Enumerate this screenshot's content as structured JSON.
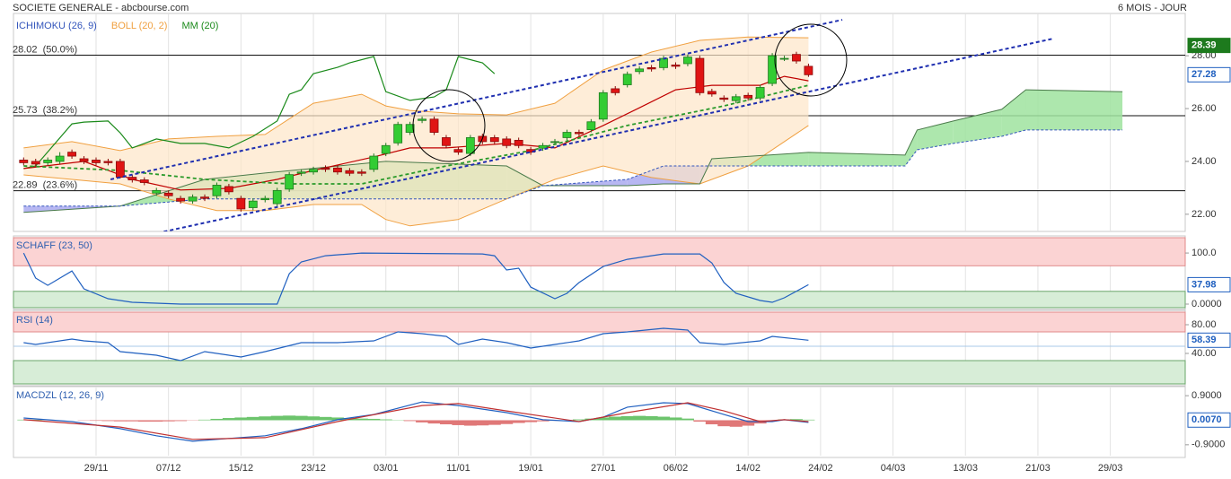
{
  "header": {
    "title": "SOCIETE GENERALE - abcbourse.com",
    "period": "6 MOIS - JOUR"
  },
  "chart_data": [
    {
      "type": "candlestick",
      "x": [
        0,
        1,
        2,
        3,
        4,
        5,
        6,
        7,
        8,
        9,
        10,
        11,
        12,
        13,
        14,
        15,
        16,
        17,
        18,
        19,
        20,
        21,
        22,
        23,
        24,
        25,
        26,
        27,
        28,
        29,
        30,
        31,
        32,
        33,
        34,
        35,
        36,
        37,
        38,
        39,
        40,
        41,
        42,
        43,
        44,
        45,
        46,
        47,
        48,
        49,
        50,
        51,
        52,
        53,
        54,
        55,
        56,
        57,
        58,
        59,
        60,
        61,
        62,
        63,
        64,
        65
      ],
      "open": [
        24.05,
        24.0,
        23.95,
        24.0,
        24.35,
        24.1,
        24.05,
        24.0,
        24.0,
        23.4,
        23.3,
        22.8,
        22.8,
        22.6,
        22.5,
        22.65,
        22.7,
        23.05,
        22.6,
        22.25,
        22.55,
        22.4,
        22.95,
        23.55,
        23.6,
        23.75,
        23.75,
        23.65,
        23.6,
        23.7,
        24.3,
        24.7,
        25.1,
        25.55,
        25.6,
        24.9,
        24.45,
        24.3,
        24.95,
        24.9,
        24.85,
        24.8,
        24.45,
        24.5,
        24.75,
        24.9,
        25.1,
        25.2,
        25.6,
        26.75,
        26.9,
        27.4,
        27.55,
        27.55,
        27.65,
        27.7,
        27.9,
        26.65,
        26.4,
        26.3,
        26.5,
        26.4,
        26.95,
        27.9,
        28.05,
        27.6
      ],
      "high": [
        24.15,
        24.1,
        24.15,
        24.35,
        24.45,
        24.2,
        24.15,
        24.1,
        24.1,
        23.5,
        23.4,
        23.0,
        22.9,
        22.7,
        22.75,
        22.75,
        23.2,
        23.15,
        22.7,
        22.6,
        22.7,
        23.0,
        23.6,
        23.7,
        23.8,
        23.85,
        23.85,
        23.75,
        23.7,
        24.3,
        24.7,
        25.5,
        25.5,
        25.7,
        25.7,
        25.0,
        24.55,
        25.0,
        25.05,
        25.0,
        24.95,
        24.9,
        24.55,
        24.7,
        24.85,
        25.2,
        25.2,
        25.6,
        26.7,
        26.85,
        27.4,
        27.6,
        27.65,
        28.0,
        27.75,
        28.05,
        28.0,
        26.75,
        26.5,
        26.55,
        26.6,
        26.9,
        28.1,
        28.0,
        28.15,
        27.7
      ],
      "low": [
        23.85,
        23.8,
        23.85,
        23.9,
        24.1,
        23.9,
        23.85,
        23.85,
        23.35,
        23.2,
        23.1,
        22.7,
        22.6,
        22.4,
        22.4,
        22.5,
        22.6,
        22.75,
        22.1,
        22.15,
        22.45,
        22.3,
        22.85,
        23.45,
        23.5,
        23.6,
        23.5,
        23.45,
        23.45,
        23.6,
        24.2,
        24.6,
        25.0,
        25.45,
        25.0,
        24.5,
        24.25,
        24.2,
        24.65,
        24.65,
        24.5,
        24.5,
        24.25,
        24.4,
        24.65,
        24.8,
        24.95,
        25.1,
        25.5,
        26.5,
        26.8,
        27.3,
        27.4,
        27.45,
        27.5,
        27.6,
        26.5,
        26.45,
        26.25,
        26.2,
        26.3,
        26.3,
        26.85,
        27.8,
        27.7,
        27.2
      ],
      "close": [
        23.95,
        23.9,
        24.05,
        24.2,
        24.2,
        24.0,
        23.95,
        23.95,
        23.4,
        23.3,
        23.2,
        22.9,
        22.7,
        22.5,
        22.65,
        22.6,
        23.1,
        22.85,
        22.2,
        22.5,
        22.6,
        22.9,
        23.5,
        23.6,
        23.7,
        23.7,
        23.6,
        23.55,
        23.55,
        24.2,
        24.6,
        25.4,
        25.4,
        25.6,
        25.1,
        24.6,
        24.35,
        24.9,
        24.75,
        24.75,
        24.6,
        24.6,
        24.35,
        24.6,
        24.75,
        25.1,
        25.05,
        25.5,
        26.6,
        26.6,
        27.3,
        27.5,
        27.5,
        27.9,
        27.6,
        27.95,
        26.6,
        26.55,
        26.35,
        26.45,
        26.4,
        26.8,
        28.0,
        27.9,
        27.8,
        27.28
      ],
      "colors": {
        "up": "#33cc33",
        "down": "#e01414",
        "up_edge": "#1f7a1f",
        "down_edge": "#8a0a0a"
      },
      "ylim": [
        21.35,
        29.6
      ],
      "yticks": [
        {
          "value": 28,
          "label": "28.00"
        },
        {
          "value": 26,
          "label": "26.00"
        },
        {
          "value": 24,
          "label": "24.00"
        },
        {
          "value": 22,
          "label": "22.00"
        }
      ],
      "cloud": {
        "name": "ICHIMOKU (26, 9)",
        "color": "#3355bb",
        "a_color": "#4a7a4a",
        "colors": [
          "#9fe39f",
          "#aaaaf0"
        ],
        "x": [
          0,
          8,
          15,
          20,
          30,
          40,
          43,
          50,
          53,
          56,
          57,
          65,
          73,
          74,
          77,
          81,
          83,
          91
        ],
        "span_a": [
          22.07,
          22.31,
          23.32,
          23.56,
          24.0,
          23.83,
          23.08,
          23.08,
          23.15,
          23.15,
          24.1,
          24.34,
          24.24,
          25.19,
          25.53,
          25.97,
          26.71,
          26.64
        ],
        "span_b": [
          22.31,
          22.31,
          22.58,
          22.58,
          22.58,
          22.58,
          23.08,
          23.32,
          23.83,
          23.83,
          23.83,
          23.83,
          23.83,
          24.44,
          24.68,
          24.95,
          25.19,
          25.19
        ]
      },
      "bands": {
        "name": "BOLL (20, 2)",
        "color": "#f0a040",
        "fill": "#fde6c8",
        "x": [
          0,
          4,
          8,
          12,
          16,
          20,
          24,
          28,
          30,
          32,
          36,
          40,
          44,
          48,
          52,
          56,
          60,
          65
        ],
        "upper": [
          24.51,
          24.75,
          24.41,
          24.85,
          24.95,
          25.02,
          26.2,
          26.54,
          26.1,
          25.93,
          25.8,
          25.76,
          26.2,
          27.46,
          28.14,
          28.58,
          28.71,
          28.68
        ],
        "lower": [
          23.49,
          23.32,
          23.15,
          22.58,
          22.14,
          22.14,
          22.37,
          22.37,
          21.8,
          21.56,
          21.8,
          22.58,
          23.32,
          23.83,
          23.39,
          23.15,
          23.83,
          25.36
        ]
      },
      "series": [
        {
          "name": "MM (20)",
          "color": "#1a8a1a",
          "x": [
            0,
            1,
            4,
            5,
            7,
            8,
            9,
            11,
            13,
            15,
            17,
            19,
            21,
            22,
            23,
            24,
            26,
            27,
            29,
            30,
            32,
            34,
            35,
            36,
            38,
            39
          ],
          "values": [
            23.73,
            23.83,
            25.42,
            25.49,
            25.53,
            25.08,
            24.51,
            24.85,
            24.68,
            24.68,
            24.51,
            24.95,
            25.53,
            26.54,
            26.71,
            27.32,
            27.56,
            27.73,
            27.97,
            26.64,
            26.31,
            26.44,
            26.71,
            27.97,
            27.73,
            27.32
          ]
        },
        {
          "color": "#c00000",
          "x": [
            0,
            5,
            9,
            13,
            17,
            21,
            24,
            29,
            32,
            35,
            40,
            44,
            48,
            51,
            54,
            57,
            61,
            63,
            65
          ],
          "values": [
            23.73,
            24.0,
            23.32,
            22.92,
            22.98,
            23.32,
            23.66,
            24.17,
            24.51,
            24.51,
            24.68,
            24.51,
            25.36,
            26.03,
            26.71,
            26.88,
            26.88,
            27.22,
            27.05
          ]
        },
        {
          "color": "#2a9a2a",
          "dashed": true,
          "x": [
            0,
            8,
            15,
            22,
            28,
            35,
            42,
            50,
            58,
            65
          ],
          "values": [
            23.83,
            23.66,
            23.32,
            23.15,
            23.15,
            23.83,
            24.41,
            25.36,
            26.1,
            26.88
          ]
        }
      ],
      "trendlines": {
        "color": "#1f2fb0",
        "lines": [
          {
            "x": [
              7.2,
              67.8
            ],
            "values": [
              23.32,
              29.36
            ]
          },
          {
            "x": [
              11.1,
              85.2
            ],
            "values": [
              21.29,
              28.64
            ]
          }
        ]
      },
      "levels": [
        {
          "value": 28.02,
          "label": "28.02  (50.0%)"
        },
        {
          "value": 25.73,
          "label": "25.73  (38.2%)"
        },
        {
          "value": 22.89,
          "label": "22.89  (23.6%)"
        }
      ],
      "last_values": [
        {
          "value": 28.39,
          "color": "#1d7a1d",
          "filled": true
        },
        {
          "value": 27.28,
          "color": "#1f5fbf"
        }
      ]
    },
    {
      "type": "line",
      "title": "SCHAFF (23, 50)",
      "ylim": [
        -7,
        130
      ],
      "yticks": [
        {
          "value": 100,
          "label": "100.0"
        },
        {
          "value": 0,
          "label": "0.0000"
        }
      ],
      "zones": [
        {
          "range": [
            75,
            130
          ],
          "color": "#fbd3d3",
          "edge": "#e08a8a"
        },
        {
          "range": [
            -7,
            25
          ],
          "color": "#d7edd7",
          "edge": "#6aa66a"
        }
      ],
      "series": [
        {
          "color": "#2060c0",
          "x": [
            0,
            1,
            2,
            4,
            5,
            7,
            9,
            13,
            21,
            22,
            23,
            25,
            28,
            38,
            39,
            40,
            41,
            42,
            44,
            45,
            46,
            48,
            50,
            53,
            56,
            57,
            58,
            59,
            61,
            62,
            63,
            65
          ],
          "values": [
            100,
            50.9,
            36.8,
            64.9,
            29.8,
            10.5,
            3.5,
            0,
            0,
            59.6,
            82.5,
            94.7,
            100,
            98.2,
            94.7,
            66.7,
            70.2,
            33.3,
            10.5,
            21.1,
            42.1,
            73.7,
            87.7,
            98.2,
            98.2,
            80.7,
            42.1,
            21.1,
            7.0,
            3.5,
            12.3,
            37.98
          ]
        }
      ],
      "last_values": [
        {
          "value": 37.98,
          "color": "#1f5fbf"
        }
      ]
    },
    {
      "type": "line",
      "title": "RSI (14)",
      "ylim": [
        -2.5,
        97.5
      ],
      "yticks": [
        {
          "value": 80,
          "label": "80.00"
        },
        {
          "value": 40,
          "label": "40.00"
        }
      ],
      "zones": [
        {
          "range": [
            70,
            97.5
          ],
          "color": "#fbd3d3",
          "edge": "#e08a8a"
        },
        {
          "range": [
            -2.5,
            30
          ],
          "color": "#d7edd7",
          "edge": "#6aa66a"
        }
      ],
      "midline": 50,
      "midline_color": "#a8c8e8",
      "series": [
        {
          "color": "#2060c0",
          "x": [
            0,
            1,
            4,
            5,
            7,
            8,
            11,
            13,
            15,
            18,
            20,
            23,
            26,
            29,
            31,
            33,
            35,
            36,
            38,
            40,
            42,
            44,
            46,
            48,
            50,
            53,
            55,
            56,
            58,
            61,
            62,
            65
          ],
          "values": [
            55,
            52.5,
            60,
            57.5,
            55,
            42.5,
            37.5,
            30,
            42.5,
            35,
            42.5,
            55,
            55,
            57.5,
            70,
            67.5,
            63.75,
            52.5,
            60,
            55,
            47.5,
            52.5,
            57.5,
            67.5,
            70,
            75,
            72.5,
            55,
            52.5,
            57.5,
            63.75,
            58.39
          ]
        }
      ],
      "last_values": [
        {
          "value": 58.39,
          "color": "#1f5fbf"
        }
      ]
    },
    {
      "type": "macd",
      "title": "MACDZL (12, 26, 9)",
      "ylim": [
        -1.3,
        1.2
      ],
      "yticks": [
        {
          "value": 0.9,
          "label": "0.9000"
        },
        {
          "value": -0.9,
          "label": "-0.9000"
        }
      ],
      "histogram": {
        "colors": [
          "#6cc46c",
          "#e07878"
        ],
        "x": [
          0,
          1,
          2,
          3,
          4,
          5,
          6,
          7,
          8,
          9,
          10,
          11,
          12,
          13,
          14,
          15,
          16,
          17,
          18,
          19,
          20,
          21,
          22,
          23,
          24,
          25,
          26,
          27,
          28,
          29,
          30,
          31,
          32,
          33,
          34,
          35,
          36,
          37,
          38,
          39,
          40,
          41,
          42,
          43,
          44,
          45,
          46,
          47,
          48,
          49,
          50,
          51,
          52,
          53,
          54,
          55,
          56,
          57,
          58,
          59,
          60,
          61,
          62,
          63,
          64,
          65
        ],
        "values": [
          0.02,
          0.02,
          0.01,
          0,
          0,
          -0.01,
          -0.02,
          -0.03,
          -0.04,
          -0.04,
          -0.05,
          -0.05,
          -0.04,
          -0.03,
          -0.01,
          0.02,
          0.05,
          0.08,
          0.1,
          0.12,
          0.14,
          0.16,
          0.17,
          0.16,
          0.14,
          0.12,
          0.1,
          0.08,
          0.06,
          0.05,
          0.03,
          0.01,
          -0.03,
          -0.08,
          -0.12,
          -0.15,
          -0.18,
          -0.2,
          -0.19,
          -0.17,
          -0.14,
          -0.1,
          -0.07,
          -0.04,
          -0.02,
          0,
          0.03,
          0.06,
          0.1,
          0.13,
          0.15,
          0.16,
          0.15,
          0.13,
          0.1,
          0.06,
          -0.05,
          -0.15,
          -0.22,
          -0.24,
          -0.2,
          -0.12,
          -0.03,
          0.03,
          0.04,
          0.02
        ]
      },
      "series": [
        {
          "color": "#2060c0",
          "x": [
            0,
            4,
            8,
            11,
            14,
            17,
            20,
            23,
            26,
            29,
            33,
            36,
            40,
            43,
            46,
            48,
            50,
            53,
            55,
            58,
            60,
            62,
            63,
            65
          ],
          "values": [
            0.08,
            -0.05,
            -0.31,
            -0.57,
            -0.77,
            -0.67,
            -0.57,
            -0.31,
            0.02,
            0.21,
            0.67,
            0.54,
            0.28,
            0.02,
            -0.05,
            0.11,
            0.48,
            0.64,
            0.61,
            0.21,
            -0.05,
            -0.05,
            0.02,
            -0.08
          ]
        },
        {
          "color": "#c03030",
          "x": [
            0,
            8,
            14,
            20,
            26,
            33,
            36,
            40,
            46,
            50,
            55,
            58,
            61,
            63,
            65
          ],
          "values": [
            0.02,
            -0.25,
            -0.7,
            -0.64,
            -0.05,
            0.54,
            0.61,
            0.34,
            -0.05,
            0.28,
            0.64,
            0.34,
            -0.05,
            0.02,
            -0.05
          ]
        }
      ],
      "last_values": [
        {
          "value": 0.007,
          "label": "0.0070",
          "color": "#1f5fbf"
        }
      ],
      "xlim": [
        -0.84,
        96.2
      ],
      "xticks": [
        {
          "value": 6,
          "label": "29/11"
        },
        {
          "value": 12,
          "label": "07/12"
        },
        {
          "value": 18,
          "label": "15/12"
        },
        {
          "value": 24,
          "label": "23/12"
        },
        {
          "value": 30,
          "label": "03/01"
        },
        {
          "value": 36,
          "label": "11/01"
        },
        {
          "value": 42,
          "label": "19/01"
        },
        {
          "value": 48,
          "label": "27/01"
        },
        {
          "value": 54,
          "label": "06/02"
        },
        {
          "value": 60,
          "label": "14/02"
        },
        {
          "value": 66,
          "label": "24/02"
        },
        {
          "value": 72,
          "label": "04/03"
        },
        {
          "value": 78,
          "label": "13/03"
        },
        {
          "value": 84,
          "label": "21/03"
        },
        {
          "value": 90,
          "label": "29/03"
        }
      ]
    }
  ]
}
